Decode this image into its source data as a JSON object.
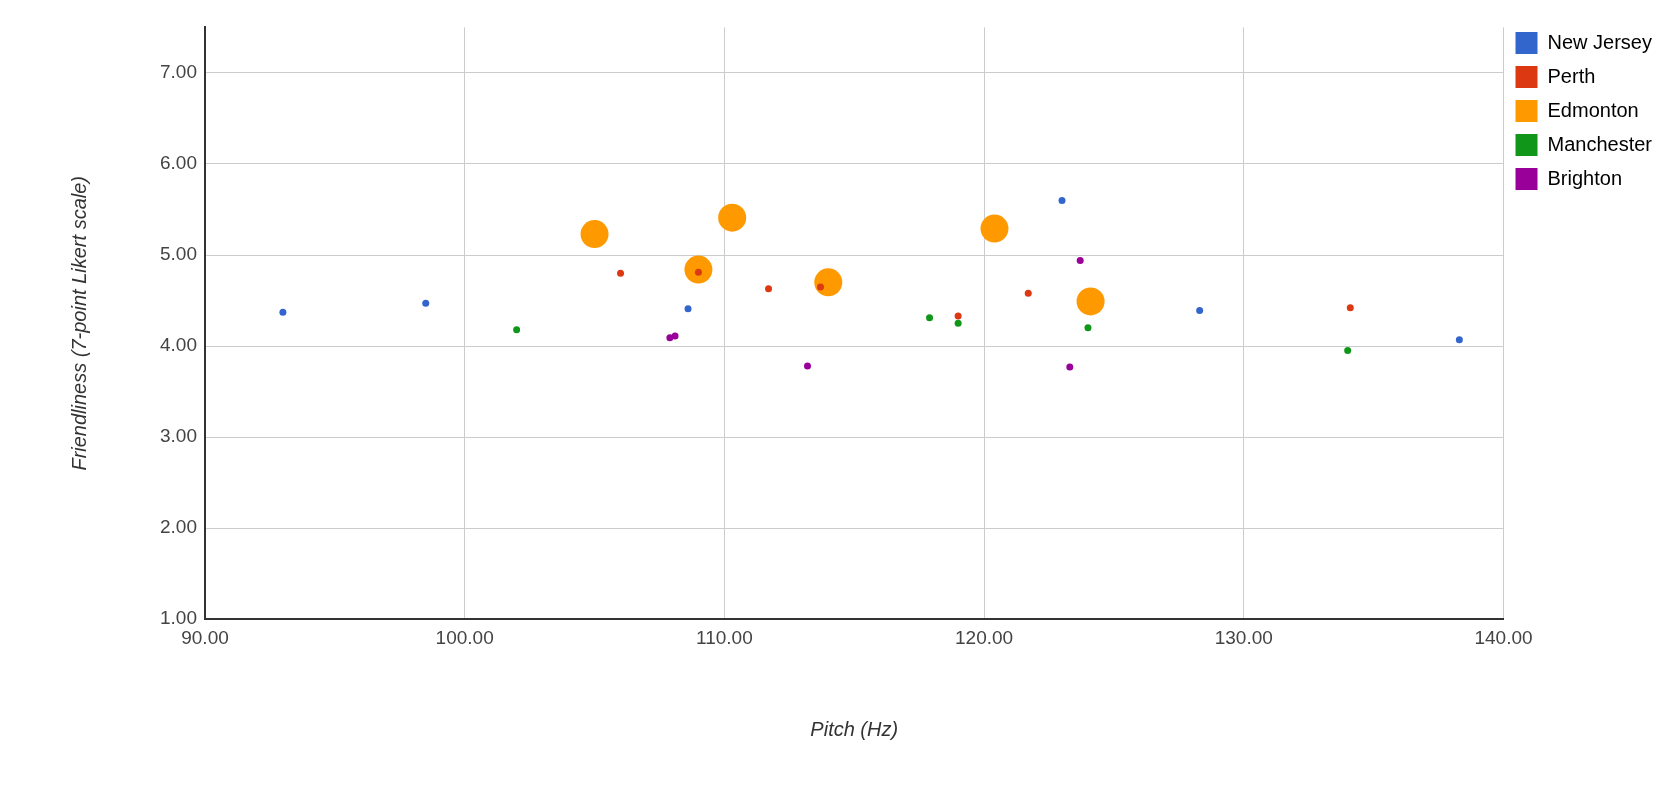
{
  "chart_data": {
    "type": "scatter",
    "xlabel": "Pitch (Hz)",
    "ylabel": "Friendliness (7-point Likert scale)",
    "xlim": [
      90,
      140
    ],
    "ylim": [
      1,
      7.5
    ],
    "xticks": [
      {
        "value": 90,
        "label": "90.00"
      },
      {
        "value": 100,
        "label": "100.00"
      },
      {
        "value": 110,
        "label": "110.00"
      },
      {
        "value": 120,
        "label": "120.00"
      },
      {
        "value": 130,
        "label": "130.00"
      },
      {
        "value": 140,
        "label": "140.00"
      }
    ],
    "yticks": [
      {
        "value": 1,
        "label": "1.00"
      },
      {
        "value": 2,
        "label": "2.00"
      },
      {
        "value": 3,
        "label": "3.00"
      },
      {
        "value": 4,
        "label": "4.00"
      },
      {
        "value": 5,
        "label": "5.00"
      },
      {
        "value": 6,
        "label": "6.00"
      },
      {
        "value": 7,
        "label": "7.00"
      }
    ],
    "grid": true,
    "legend": "top right",
    "marker": "circle",
    "series": [
      {
        "name": "New Jersey",
        "color": "#3366cc",
        "x": [
          93.0,
          98.5,
          108.6,
          123.0,
          128.3,
          138.3
        ],
        "values": [
          4.37,
          4.47,
          4.41,
          5.6,
          4.39,
          4.07
        ]
      },
      {
        "name": "Perth",
        "color": "#dc3912",
        "x": [
          106.0,
          109.0,
          111.7,
          113.7,
          119.0,
          121.7,
          134.1
        ],
        "values": [
          4.8,
          4.81,
          4.63,
          4.65,
          4.33,
          4.58,
          4.42
        ]
      },
      {
        "name": "Edmonton",
        "type": "bubble",
        "color": "#ff9900",
        "x": [
          105.0,
          109.0,
          110.3,
          114.0,
          120.4,
          124.1
        ],
        "values": [
          5.23,
          4.84,
          5.41,
          4.7,
          5.29,
          4.49
        ],
        "sizes": [
          1,
          1,
          1,
          1,
          1,
          1
        ]
      },
      {
        "name": "Manchester",
        "color": "#109618",
        "x": [
          102.0,
          117.9,
          119.0,
          124.0,
          134.0
        ],
        "values": [
          4.18,
          4.31,
          4.25,
          4.2,
          3.95
        ]
      },
      {
        "name": "Brighton",
        "color": "#990099",
        "x": [
          107.9,
          108.1,
          113.2,
          123.3,
          123.7
        ],
        "values": [
          4.09,
          4.11,
          3.78,
          3.77,
          4.94
        ]
      }
    ]
  }
}
